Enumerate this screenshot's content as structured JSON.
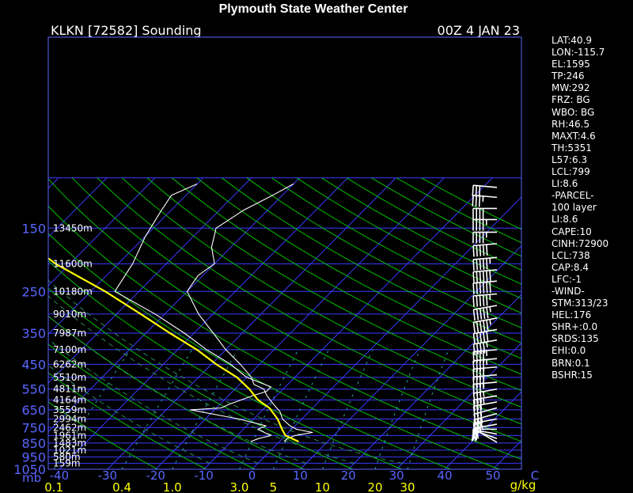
{
  "header": {
    "title": "Plymouth State Weather Center",
    "station": "KLKN [72582] Sounding",
    "time": "00Z  4 JAN 23"
  },
  "colors": {
    "background": "#000000",
    "isobar": "#3a3aff",
    "isotherm": "#3a3aff",
    "dry_adiabat": "#00c000",
    "moist_adiabat": "#2e8b57",
    "mixing_ratio": "#2aa7a7",
    "temperature": "#ffffff",
    "dewpoint": "#ffffff",
    "parcel": "#ffff00",
    "wind_barb": "#ffffff",
    "labels": "#5a66ff"
  },
  "stats": [
    "LAT:40.9",
    "LON:-115.7",
    "EL:1595",
    "TP:246",
    "MW:292",
    "FRZ: BG",
    "WBO: BG",
    "RH:46.5",
    "MAXT:4.6",
    "TH:5351",
    "L57:6.3",
    "LCL:799",
    "LI:8.6",
    "-PARCEL-",
    "100 layer",
    "LI:8.6",
    "CAPE:10",
    "CINH:72900",
    "LCL:738",
    "CAP:8.4",
    "LFC:-1",
    "-WIND-",
    "STM:313/23",
    "HEL:176",
    "SHR+:0.0",
    "SRDS:135",
    "EHI:0.0",
    "BRN:0.1",
    "BSHR:15"
  ],
  "chart_data": {
    "type": "skew-t log-p sounding",
    "pressure_axis": {
      "unit_label": "mb",
      "ticks": [
        150,
        250,
        350,
        450,
        550,
        650,
        750,
        850,
        950,
        1050
      ],
      "range": [
        100,
        1050
      ],
      "scale": "log"
    },
    "height_labels": [
      {
        "p": 150,
        "label": "13450m"
      },
      {
        "p": 200,
        "label": "11600m"
      },
      {
        "p": 250,
        "label": "10180m"
      },
      {
        "p": 300,
        "label": "9010m"
      },
      {
        "p": 350,
        "label": "7987m"
      },
      {
        "p": 400,
        "label": "7100m"
      },
      {
        "p": 450,
        "label": "6262m"
      },
      {
        "p": 500,
        "label": "5510m"
      },
      {
        "p": 550,
        "label": "4811m"
      },
      {
        "p": 600,
        "label": "4164m"
      },
      {
        "p": 650,
        "label": "3559m"
      },
      {
        "p": 700,
        "label": "2994m"
      },
      {
        "p": 750,
        "label": "2462m"
      },
      {
        "p": 800,
        "label": "1961m"
      },
      {
        "p": 850,
        "label": "1483m"
      },
      {
        "p": 900,
        "label": "1021m"
      },
      {
        "p": 950,
        "label": "580m"
      },
      {
        "p": 1000,
        "label": "159m"
      }
    ],
    "temperature_axis": {
      "unit_label": "C",
      "ticks": [
        -40,
        -30,
        -20,
        -10,
        0,
        10,
        20,
        30,
        40,
        50
      ],
      "isotherms": [
        -110,
        -100,
        -90,
        -80,
        -70,
        -60,
        -50,
        -40,
        -30,
        -20,
        -10,
        0,
        10,
        20,
        30,
        40,
        50
      ]
    },
    "mixing_ratio_axis": {
      "unit_label": "g/kg",
      "ticks": [
        0.1,
        0.4,
        1.0,
        3.0,
        5.0,
        10,
        20,
        30
      ]
    },
    "dry_adiabats_K": [
      250,
      260,
      270,
      280,
      290,
      300,
      310,
      320,
      330,
      340,
      350,
      360,
      370,
      380,
      390,
      400,
      410,
      420,
      430,
      440,
      450,
      460,
      470,
      480
    ],
    "moist_adiabats_C": [
      -10,
      0,
      10,
      20,
      30
    ],
    "series": [
      {
        "name": "temperature",
        "points": [
          [
            1,
            840
          ],
          [
            1,
            820
          ],
          [
            2,
            800
          ],
          [
            5,
            780
          ],
          [
            1,
            760
          ],
          [
            -1,
            740
          ],
          [
            -4,
            700
          ],
          [
            -6,
            660
          ],
          [
            -9,
            620
          ],
          [
            -12,
            580
          ],
          [
            -14,
            550
          ],
          [
            -17,
            530
          ],
          [
            -19,
            500
          ],
          [
            -24,
            450
          ],
          [
            -30,
            400
          ],
          [
            -36,
            350
          ],
          [
            -43,
            300
          ],
          [
            -50,
            250
          ],
          [
            -51,
            220
          ],
          [
            -50,
            200
          ],
          [
            -54,
            175
          ],
          [
            -57,
            150
          ],
          [
            -55,
            130
          ],
          [
            -52,
            115
          ],
          [
            -50,
            105
          ]
        ]
      },
      {
        "name": "dewpoint",
        "points": [
          [
            -6,
            840
          ],
          [
            -5,
            820
          ],
          [
            -3,
            800
          ],
          [
            -5,
            780
          ],
          [
            -7,
            760
          ],
          [
            -6,
            740
          ],
          [
            -13,
            700
          ],
          [
            -25,
            650
          ],
          [
            -19,
            640
          ],
          [
            -18,
            620
          ],
          [
            -15,
            580
          ],
          [
            -13,
            560
          ],
          [
            -13,
            540
          ],
          [
            -20,
            500
          ],
          [
            -26,
            450
          ],
          [
            -34,
            400
          ],
          [
            -42,
            350
          ],
          [
            -52,
            300
          ],
          [
            -65,
            250
          ],
          [
            -67,
            200
          ],
          [
            -70,
            160
          ],
          [
            -72,
            130
          ],
          [
            -73,
            115
          ],
          [
            -70,
            105
          ]
        ]
      },
      {
        "name": "parcel",
        "points": [
          [
            4,
            840
          ],
          [
            0,
            800
          ],
          [
            -2,
            760
          ],
          [
            -5,
            700
          ],
          [
            -9,
            640
          ],
          [
            -13,
            600
          ],
          [
            -17,
            550
          ],
          [
            -22,
            500
          ],
          [
            -29,
            450
          ],
          [
            -36,
            400
          ],
          [
            -45,
            350
          ],
          [
            -55,
            300
          ],
          [
            -67,
            250
          ],
          [
            -83,
            200
          ],
          [
            -100,
            150
          ],
          [
            -115,
            115
          ],
          [
            -121,
            105
          ]
        ]
      }
    ],
    "wind_barbs": [
      {
        "p": 845,
        "dir": 300,
        "spd": 10
      },
      {
        "p": 820,
        "dir": 290,
        "spd": 15
      },
      {
        "p": 790,
        "dir": 280,
        "spd": 20
      },
      {
        "p": 760,
        "dir": 270,
        "spd": 20
      },
      {
        "p": 730,
        "dir": 260,
        "spd": 25
      },
      {
        "p": 700,
        "dir": 260,
        "spd": 25
      },
      {
        "p": 670,
        "dir": 255,
        "spd": 30
      },
      {
        "p": 640,
        "dir": 255,
        "spd": 30
      },
      {
        "p": 610,
        "dir": 260,
        "spd": 30
      },
      {
        "p": 580,
        "dir": 260,
        "spd": 35
      },
      {
        "p": 550,
        "dir": 260,
        "spd": 35
      },
      {
        "p": 520,
        "dir": 265,
        "spd": 35
      },
      {
        "p": 490,
        "dir": 265,
        "spd": 40
      },
      {
        "p": 460,
        "dir": 265,
        "spd": 40
      },
      {
        "p": 430,
        "dir": 265,
        "spd": 45
      },
      {
        "p": 400,
        "dir": 265,
        "spd": 45
      },
      {
        "p": 370,
        "dir": 260,
        "spd": 45
      },
      {
        "p": 340,
        "dir": 260,
        "spd": 50
      },
      {
        "p": 310,
        "dir": 260,
        "spd": 55
      },
      {
        "p": 280,
        "dir": 260,
        "spd": 55
      },
      {
        "p": 255,
        "dir": 265,
        "spd": 55
      },
      {
        "p": 230,
        "dir": 265,
        "spd": 60
      },
      {
        "p": 210,
        "dir": 265,
        "spd": 60
      },
      {
        "p": 190,
        "dir": 265,
        "spd": 55
      },
      {
        "p": 170,
        "dir": 265,
        "spd": 50
      },
      {
        "p": 155,
        "dir": 270,
        "spd": 45
      },
      {
        "p": 140,
        "dir": 270,
        "spd": 45
      },
      {
        "p": 128,
        "dir": 270,
        "spd": 40
      },
      {
        "p": 117,
        "dir": 275,
        "spd": 35
      },
      {
        "p": 108,
        "dir": 275,
        "spd": 30
      }
    ]
  }
}
